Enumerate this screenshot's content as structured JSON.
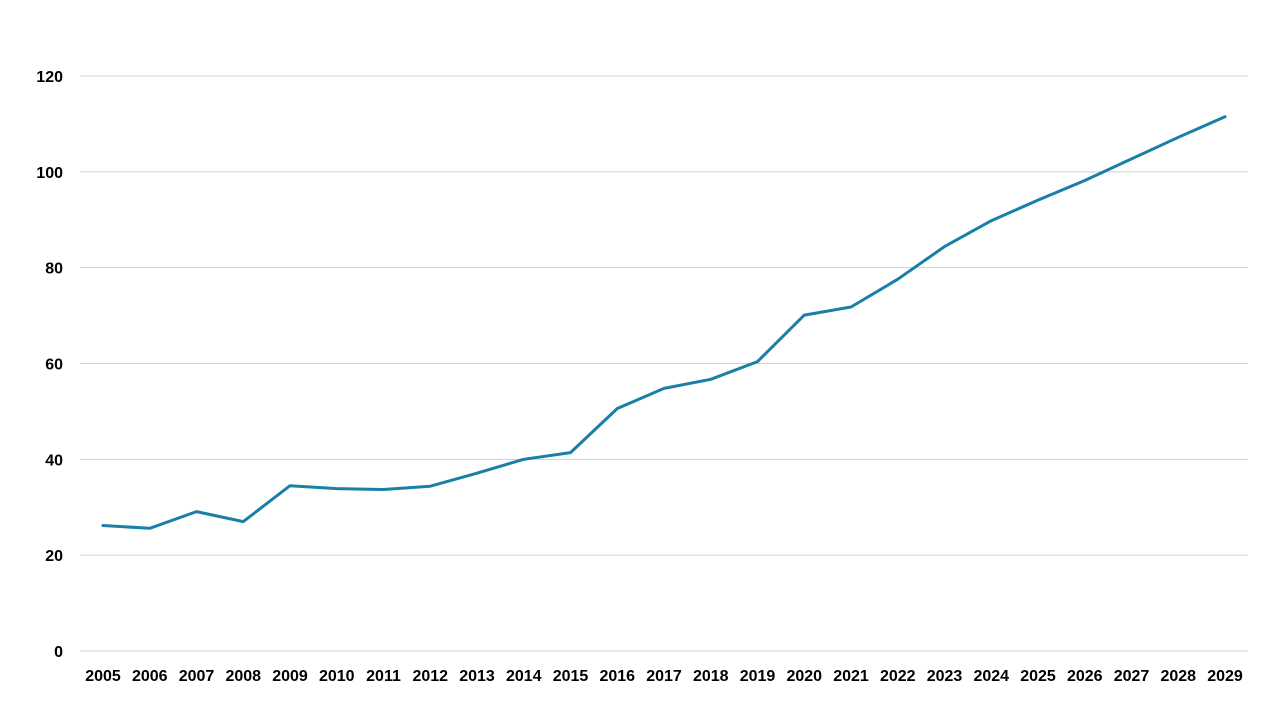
{
  "chart_data": {
    "type": "line",
    "title": "",
    "xlabel": "",
    "ylabel": "",
    "x": [
      "2005",
      "2006",
      "2007",
      "2008",
      "2009",
      "2010",
      "2011",
      "2012",
      "2013",
      "2014",
      "2015",
      "2016",
      "2017",
      "2018",
      "2019",
      "2020",
      "2021",
      "2022",
      "2023",
      "2024",
      "2025",
      "2026",
      "2027",
      "2028",
      "2029"
    ],
    "series": [
      {
        "values": [
          26.2,
          25.6,
          29.1,
          27.0,
          34.5,
          33.9,
          33.7,
          34.4,
          37.1,
          40.0,
          41.4,
          50.6,
          54.8,
          56.7,
          60.4,
          70.1,
          71.8,
          77.6,
          84.4,
          89.8,
          94.1,
          98.2,
          102.7,
          107.2,
          111.5
        ],
        "color": "#1a7fa6"
      }
    ],
    "ylim": [
      0,
      120
    ],
    "yticks": [
      0,
      20,
      40,
      60,
      80,
      100,
      120
    ],
    "grid": true,
    "legend": "none"
  }
}
